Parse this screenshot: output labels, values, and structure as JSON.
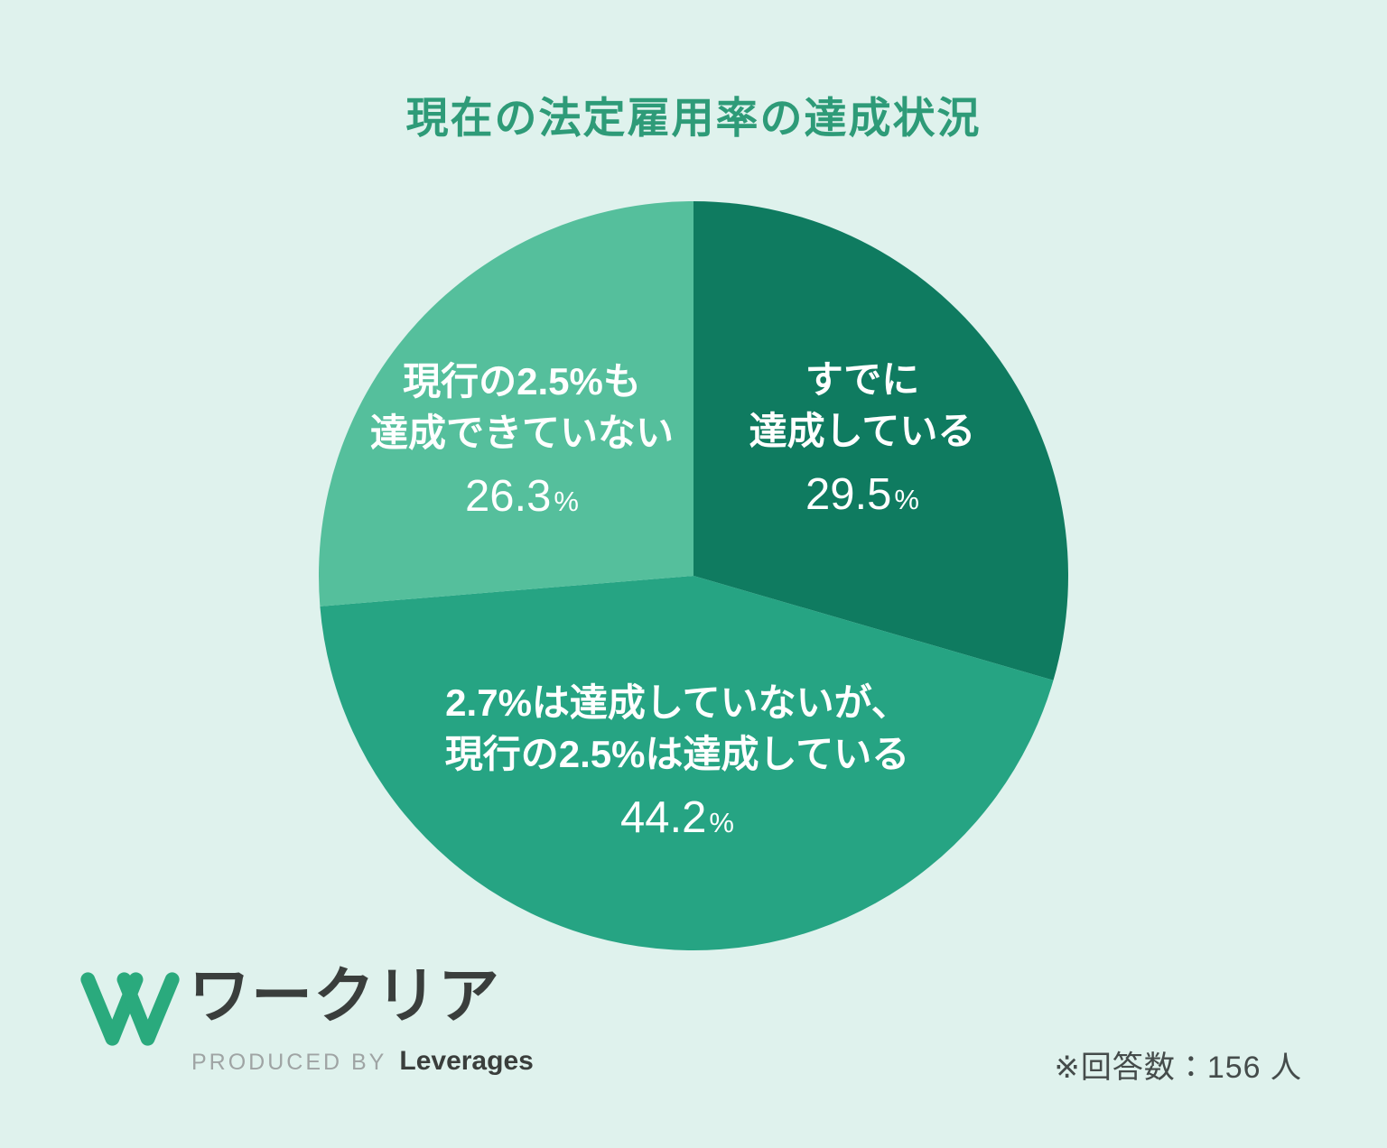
{
  "title": "現在の法定雇用率の達成状況",
  "chart_data": {
    "type": "pie",
    "title": "現在の法定雇用率の達成状況",
    "start_angle_deg": -90,
    "direction": "clockwise",
    "legend_position": "inside-slices",
    "total_responses": 156,
    "segments": [
      {
        "label": "すでに達成している",
        "label_lines": [
          "すでに",
          "達成している"
        ],
        "value": 29.5,
        "value_display": "29.5",
        "unit": "%",
        "color": "#0F7B60"
      },
      {
        "label": "2.7%は達成していないが、現行の2.5%は達成している",
        "label_lines": [
          "2.7%は達成していないが、",
          "現行の2.5%は達成している"
        ],
        "value": 44.2,
        "value_display": "44.2",
        "unit": "%",
        "color": "#26A483"
      },
      {
        "label": "現行の2.5%も達成できていない",
        "label_lines": [
          "現行の2.5%も",
          "達成できていない"
        ],
        "value": 26.3,
        "value_display": "26.3",
        "unit": "%",
        "color": "#55BF9C"
      }
    ]
  },
  "logo": {
    "brand": "ワークリア",
    "produced_by": "PRODUCED BY",
    "company": "Leverages"
  },
  "footnote": "※回答数：156 人",
  "colors": {
    "background": "#DFF2ED",
    "title": "#2E9B78",
    "slice_label_text": "#FFFFFF",
    "dark_text": "#3A3E3C",
    "gray_text": "#9FA4A4",
    "logo_green": "#2AAA7D",
    "footnote_text": "#454C4B"
  }
}
